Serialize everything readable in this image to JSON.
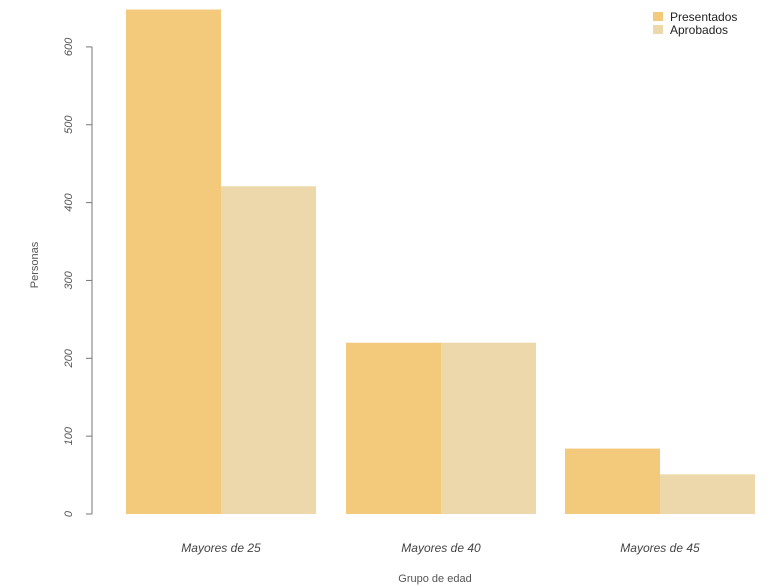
{
  "chart_data": {
    "type": "bar",
    "title": "",
    "xlabel": "Grupo de edad",
    "ylabel": "Personas",
    "categories": [
      "Mayores de 25",
      "Mayores de 40",
      "Mayores de 45"
    ],
    "series": [
      {
        "name": "Presentados",
        "values": [
          648,
          220,
          84
        ],
        "color": "#f3c97c"
      },
      {
        "name": "Aprobados",
        "values": [
          421,
          220,
          51
        ],
        "color": "#edd8ab"
      }
    ],
    "ylim": [
      0,
      650
    ],
    "yticks": [
      0,
      100,
      200,
      300,
      400,
      500,
      600
    ],
    "grid": false,
    "legend_position": "top-right"
  }
}
